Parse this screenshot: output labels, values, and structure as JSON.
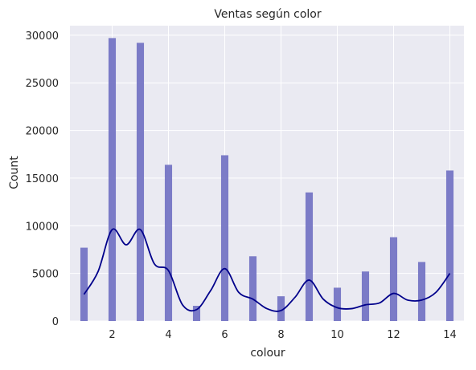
{
  "chart_data": {
    "type": "bar",
    "title": "Ventas según color",
    "xlabel": "colour",
    "ylabel": "Count",
    "xlim": [
      0.5,
      14.5
    ],
    "ylim": [
      0,
      31000
    ],
    "x_ticks": [
      2,
      4,
      6,
      8,
      10,
      12,
      14
    ],
    "y_ticks": [
      0,
      5000,
      10000,
      15000,
      20000,
      25000,
      30000
    ],
    "grid": true,
    "categories": [
      1,
      2,
      3,
      4,
      5,
      6,
      7,
      8,
      9,
      10,
      11,
      12,
      13,
      14
    ],
    "values": [
      7700,
      29700,
      29200,
      16400,
      1600,
      17400,
      6800,
      2600,
      13500,
      3500,
      5200,
      8800,
      6200,
      15800
    ],
    "kde": {
      "x": [
        1.0,
        1.5,
        2.0,
        2.5,
        3.0,
        3.5,
        4.0,
        4.5,
        5.0,
        5.5,
        6.0,
        6.5,
        7.0,
        7.5,
        8.0,
        8.5,
        9.0,
        9.5,
        10.0,
        10.5,
        11.0,
        11.5,
        12.0,
        12.5,
        13.0,
        13.5,
        14.0
      ],
      "y": [
        2800,
        5200,
        9600,
        8000,
        9600,
        6000,
        5300,
        1700,
        1200,
        3200,
        5500,
        3000,
        2300,
        1300,
        1100,
        2500,
        4300,
        2300,
        1400,
        1300,
        1700,
        1900,
        2900,
        2200,
        2200,
        3000,
        5000
      ]
    },
    "colors": {
      "background": "#eaeaf2",
      "grid": "#ffffff",
      "bar": "#7575c4",
      "kde": "#00008b"
    }
  }
}
